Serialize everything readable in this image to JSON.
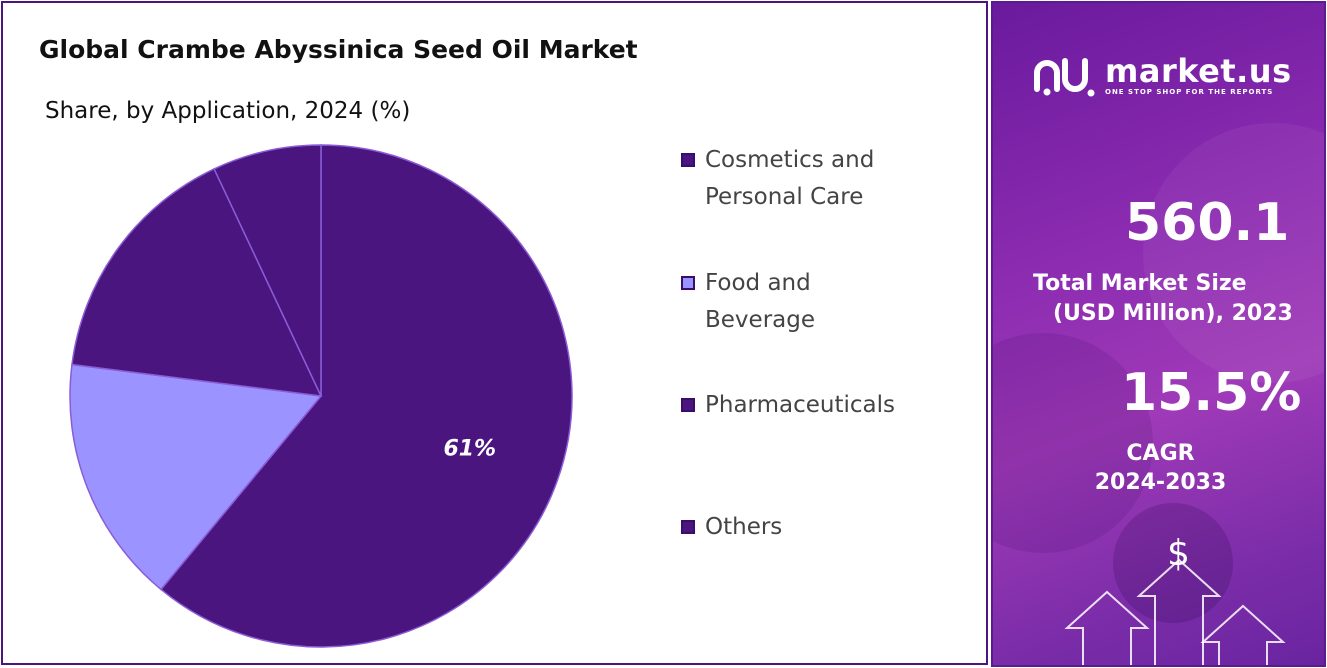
{
  "chart_data": {
    "type": "pie",
    "title": "Global Crambe Abyssinica Seed Oil Market",
    "subtitle": "Share, by Application, 2024 (%)",
    "categories": [
      "Cosmetics and Personal Care",
      "Food and Beverage",
      "Pharmaceuticals",
      "Others"
    ],
    "values": [
      61,
      16,
      16,
      7
    ],
    "data_labels": [
      "61%",
      "",
      "",
      ""
    ],
    "colors": [
      "#4b1580",
      "#9b93ff",
      "#4b1580",
      "#4b1580"
    ],
    "legend_position": "right"
  },
  "legend": [
    {
      "line1": "Cosmetics and",
      "line2": "Personal Care",
      "color": "#4b1580"
    },
    {
      "line1": "Food and",
      "line2": "Beverage",
      "color": "#9b93ff"
    },
    {
      "line1": "Pharmaceuticals",
      "line2": "",
      "color": "#4b1580"
    },
    {
      "line1": "Others",
      "line2": "",
      "color": "#4b1580"
    }
  ],
  "brand": {
    "name": "market.us",
    "tagline": "ONE STOP SHOP FOR THE REPORTS",
    "logo_icon": "market-us-logo-icon"
  },
  "stats": {
    "market_size_value": "560.1",
    "market_size_label_1": "Total Market Size",
    "market_size_label_2": "(USD Million), 2023",
    "cagr_value": "15.5%",
    "cagr_label_1": "CAGR",
    "cagr_label_2": "2024-2033"
  },
  "decor": {
    "dollar_symbol": "$"
  }
}
